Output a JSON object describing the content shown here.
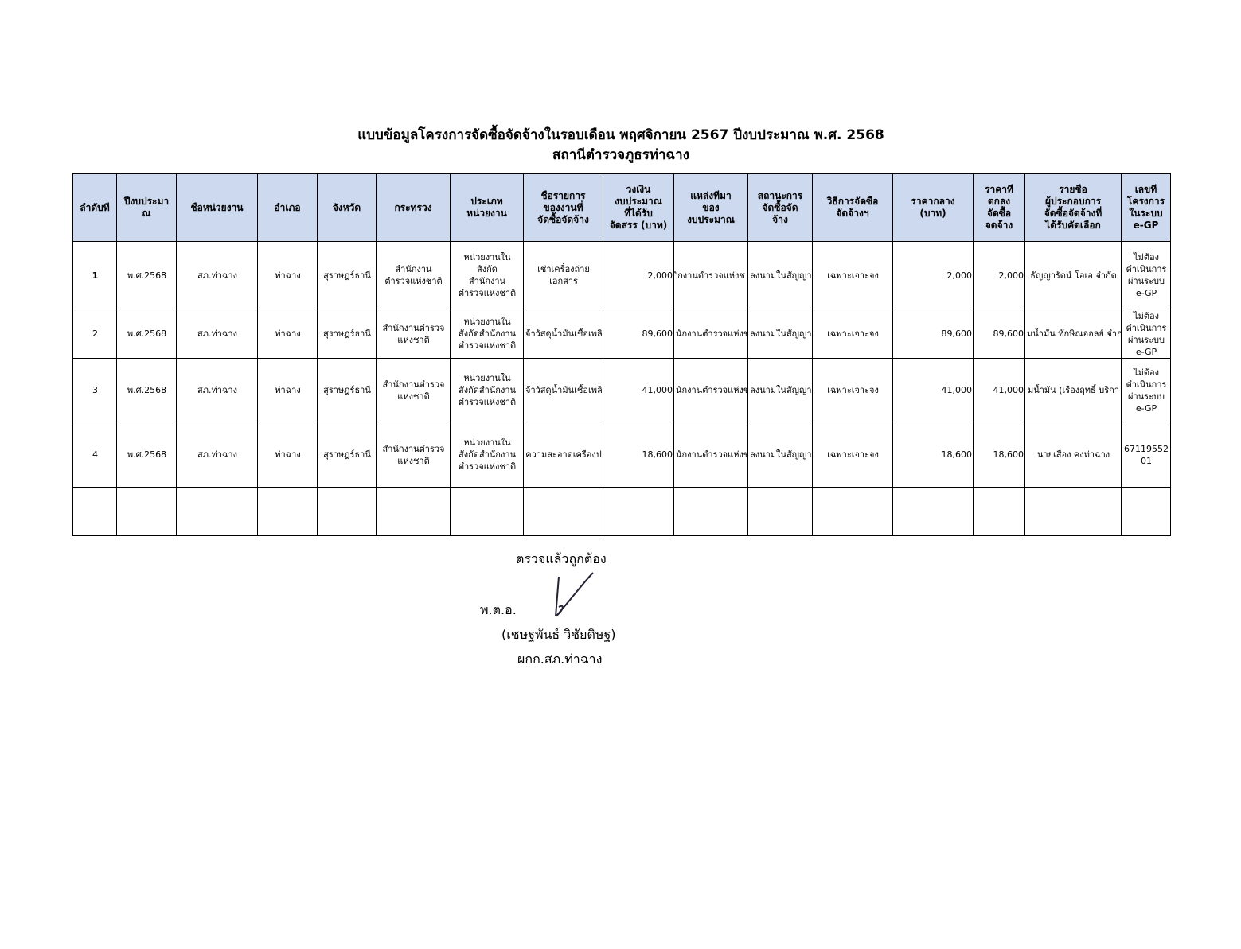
{
  "header": {
    "title": "แบบข้อมูลโครงการจัดซื้อจัดจ้างในรอบเดือน พฤศจิกายน 2567 ปีงบประมาณ พ.ศ. 2568",
    "subtitle": "สถานีตำรวจภูธรท่าฉาง"
  },
  "table": {
    "header": [
      "ลำดับที่",
      "ปีงบประมา\nณ",
      "ชื่อหน่วยงาน",
      "อำเภอ",
      "จังหวัด",
      "กระทรวง",
      "ประเภท\nหน่วยงาน",
      "ชื่อรายการ\nของงานที่\nจัดซื้อจัดจ้าง",
      "วงเงิน\nงบประมาณ\nที่ได้รับ\nจัดสรร (บาท)",
      "แหล่งที่มา\nของ\nงบประมาณ",
      "สถานะการ\nจัดซื้อจัด\nจ้าง",
      "วิธีการจัดซื้อ\nจัดจ้างฯ",
      "ราคากลาง\n(บาท)",
      "ราคาที่\nตกลง\nจัดซื้อ\nจดจ้าง",
      "รายชื่อ\nผู้ประกอบการ\nจัดซื้อจัดจ้างที่\nได้รับคัดเลือก",
      "เลขที่\nโครงการ\nในระบบ\ne-GP"
    ],
    "rows": [
      [
        "1",
        "พ.ศ.2568",
        "สภ.ท่าฉาง",
        "ท่าฉาง",
        "สุราษฎร์ธานี",
        "สำนักงาน\nตำรวจแห่งชาติ",
        "หน่วยงานใน\nสังกัด\nสำนักงาน\nตำรวจแห่งชาติ",
        "เช่าเครื่องถ่าย\nเอกสาร",
        "2,000",
        "ักงานตำรวจแห่งช",
        "ลงนามในสัญญา",
        "เฉพาะเจาะจง",
        "2,000",
        "2,000",
        "ธัญญารัตน์ โอเอ จำกัด",
        "ไม่ต้อง\nดำเนินการ\nผ่านระบบ\ne-GP"
      ],
      [
        "2",
        "พ.ศ.2568",
        "สภ.ท่าฉาง",
        "ท่าฉาง",
        "สุราษฎร์ธานี",
        "สำนักงานตำรวจ\nแห่งชาติ",
        "หน่วยงานใน\nสังกัดสำนักงาน\nตำรวจแห่งชาติ",
        "จ้าวัสดุน้ำมันเชื้อเพลิ",
        "89,600",
        "นักงานตำรวจแห่งช",
        "ลงนามในสัญญา",
        "เฉพาะเจาะจง",
        "89,600",
        "89,600",
        "มน้ำมัน ทักษิณออลย์ จำก",
        "ไม่ต้อง\nดำเนินการ\nผ่านระบบ\ne-GP"
      ],
      [
        "3",
        "พ.ศ.2568",
        "สภ.ท่าฉาง",
        "ท่าฉาง",
        "สุราษฎร์ธานี",
        "สำนักงานตำรวจ\nแห่งชาติ",
        "หน่วยงานใน\nสังกัดสำนักงาน\nตำรวจแห่งชาติ",
        "จ้าวัสดุน้ำมันเชื้อเพลิ",
        "41,000",
        "นักงานตำรวจแห่งช",
        "ลงนามในสัญญา",
        "เฉพาะเจาะจง",
        "41,000",
        "41,000",
        "มน้ำมัน (เรืองฤทธิ์ บริกา",
        "ไม่ต้อง\nดำเนินการ\nผ่านระบบ\ne-GP"
      ],
      [
        "4",
        "พ.ศ.2568",
        "สภ.ท่าฉาง",
        "ท่าฉาง",
        "สุราษฎร์ธานี",
        "สำนักงานตำรวจ\nแห่งชาติ",
        "หน่วยงานใน\nสังกัดสำนักงาน\nตำรวจแห่งชาติ",
        "ความสะอาดเครื่องป",
        "18,600",
        "นักงานตำรวจแห่งช",
        "ลงนามในสัญญา",
        "เฉพาะเจาะจง",
        "18,600",
        "18,600",
        "นายเสื่อง คงท่าฉาง",
        "67119552\n01"
      ]
    ]
  },
  "signature": {
    "check": "ตรวจแล้วถูกต้อง",
    "rank": "พ.ต.อ.",
    "name": "(เชษฐพันธ์ วิชัยดิษฐ)",
    "position": "ผกก.สภ.ท่าฉาง"
  }
}
